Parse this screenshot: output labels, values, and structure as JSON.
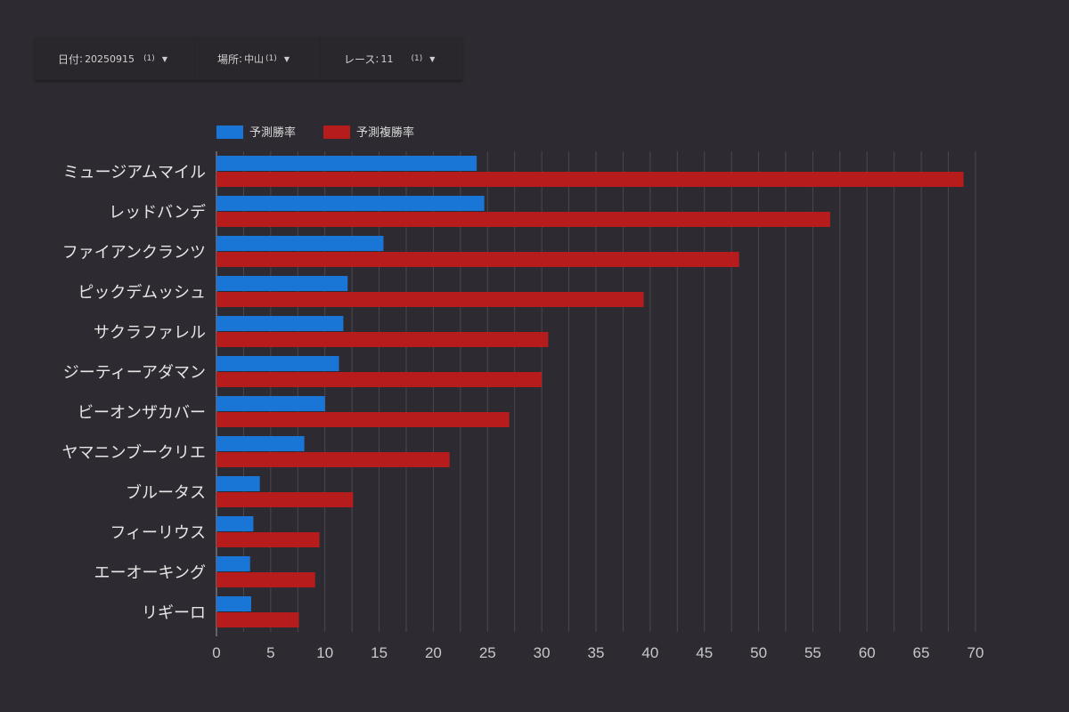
{
  "filters": [
    {
      "label": "日付",
      "value": "20250915",
      "count": "(1)"
    },
    {
      "label": "場所",
      "value": "中山",
      "count": "(1)"
    },
    {
      "label": "レース",
      "value": "11",
      "count": "(1)"
    }
  ],
  "chart_data": {
    "type": "bar",
    "orientation": "horizontal",
    "categories": [
      "ミュージアムマイル",
      "レッドバンデ",
      "ファイアンクランツ",
      "ピックデムッシュ",
      "サクラファレル",
      "ジーティーアダマン",
      "ビーオンザカバー",
      "ヤマニンブークリエ",
      "ブルータス",
      "フィーリウス",
      "エーオーキング",
      "リギーロ"
    ],
    "series": [
      {
        "name": "予測勝率",
        "color": "#1a76d6",
        "values": [
          24.0,
          24.7,
          15.4,
          12.1,
          11.7,
          11.3,
          10.0,
          8.1,
          4.0,
          3.4,
          3.1,
          3.2
        ]
      },
      {
        "name": "予測複勝率",
        "color": "#b71c1c",
        "values": [
          68.9,
          56.6,
          48.2,
          39.4,
          30.6,
          30.0,
          27.0,
          21.5,
          12.6,
          9.5,
          9.1,
          7.6
        ]
      }
    ],
    "xlim": [
      0,
      70
    ],
    "xticks": [
      0,
      5,
      10,
      15,
      20,
      25,
      30,
      35,
      40,
      45,
      50,
      55,
      60,
      65,
      70
    ],
    "grid": true,
    "legend": "top-left"
  }
}
